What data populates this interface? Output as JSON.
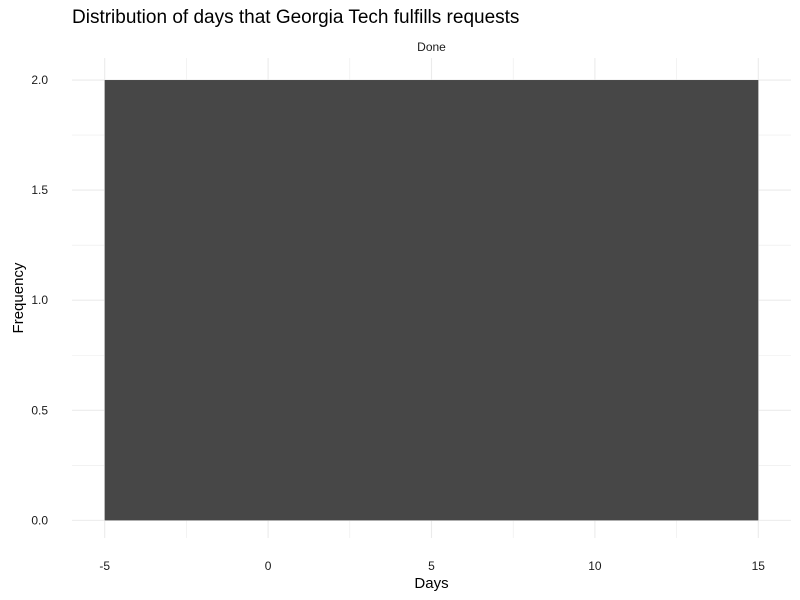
{
  "chart_data": {
    "type": "bar",
    "title": "Distribution of days that Georgia Tech fulfills requests",
    "facet_label": "Done",
    "xlabel": "Days",
    "ylabel": "Frequency",
    "xlim": [
      -6,
      16
    ],
    "ylim": [
      -0.08,
      2.1
    ],
    "x_ticks": [
      -5,
      0,
      5,
      10,
      15
    ],
    "x_tick_labels": [
      "-5",
      "0",
      "5",
      "10",
      "15"
    ],
    "y_ticks": [
      0.0,
      0.5,
      1.0,
      1.5,
      2.0
    ],
    "y_tick_labels": [
      "0.0",
      "0.5",
      "1.0",
      "1.5",
      "2.0"
    ],
    "bins": [
      {
        "x_start": -5,
        "x_end": 15,
        "count": 2
      }
    ],
    "grid": true,
    "legend": "none",
    "bar_color": "#474747",
    "grid_color": "#ebebeb"
  }
}
